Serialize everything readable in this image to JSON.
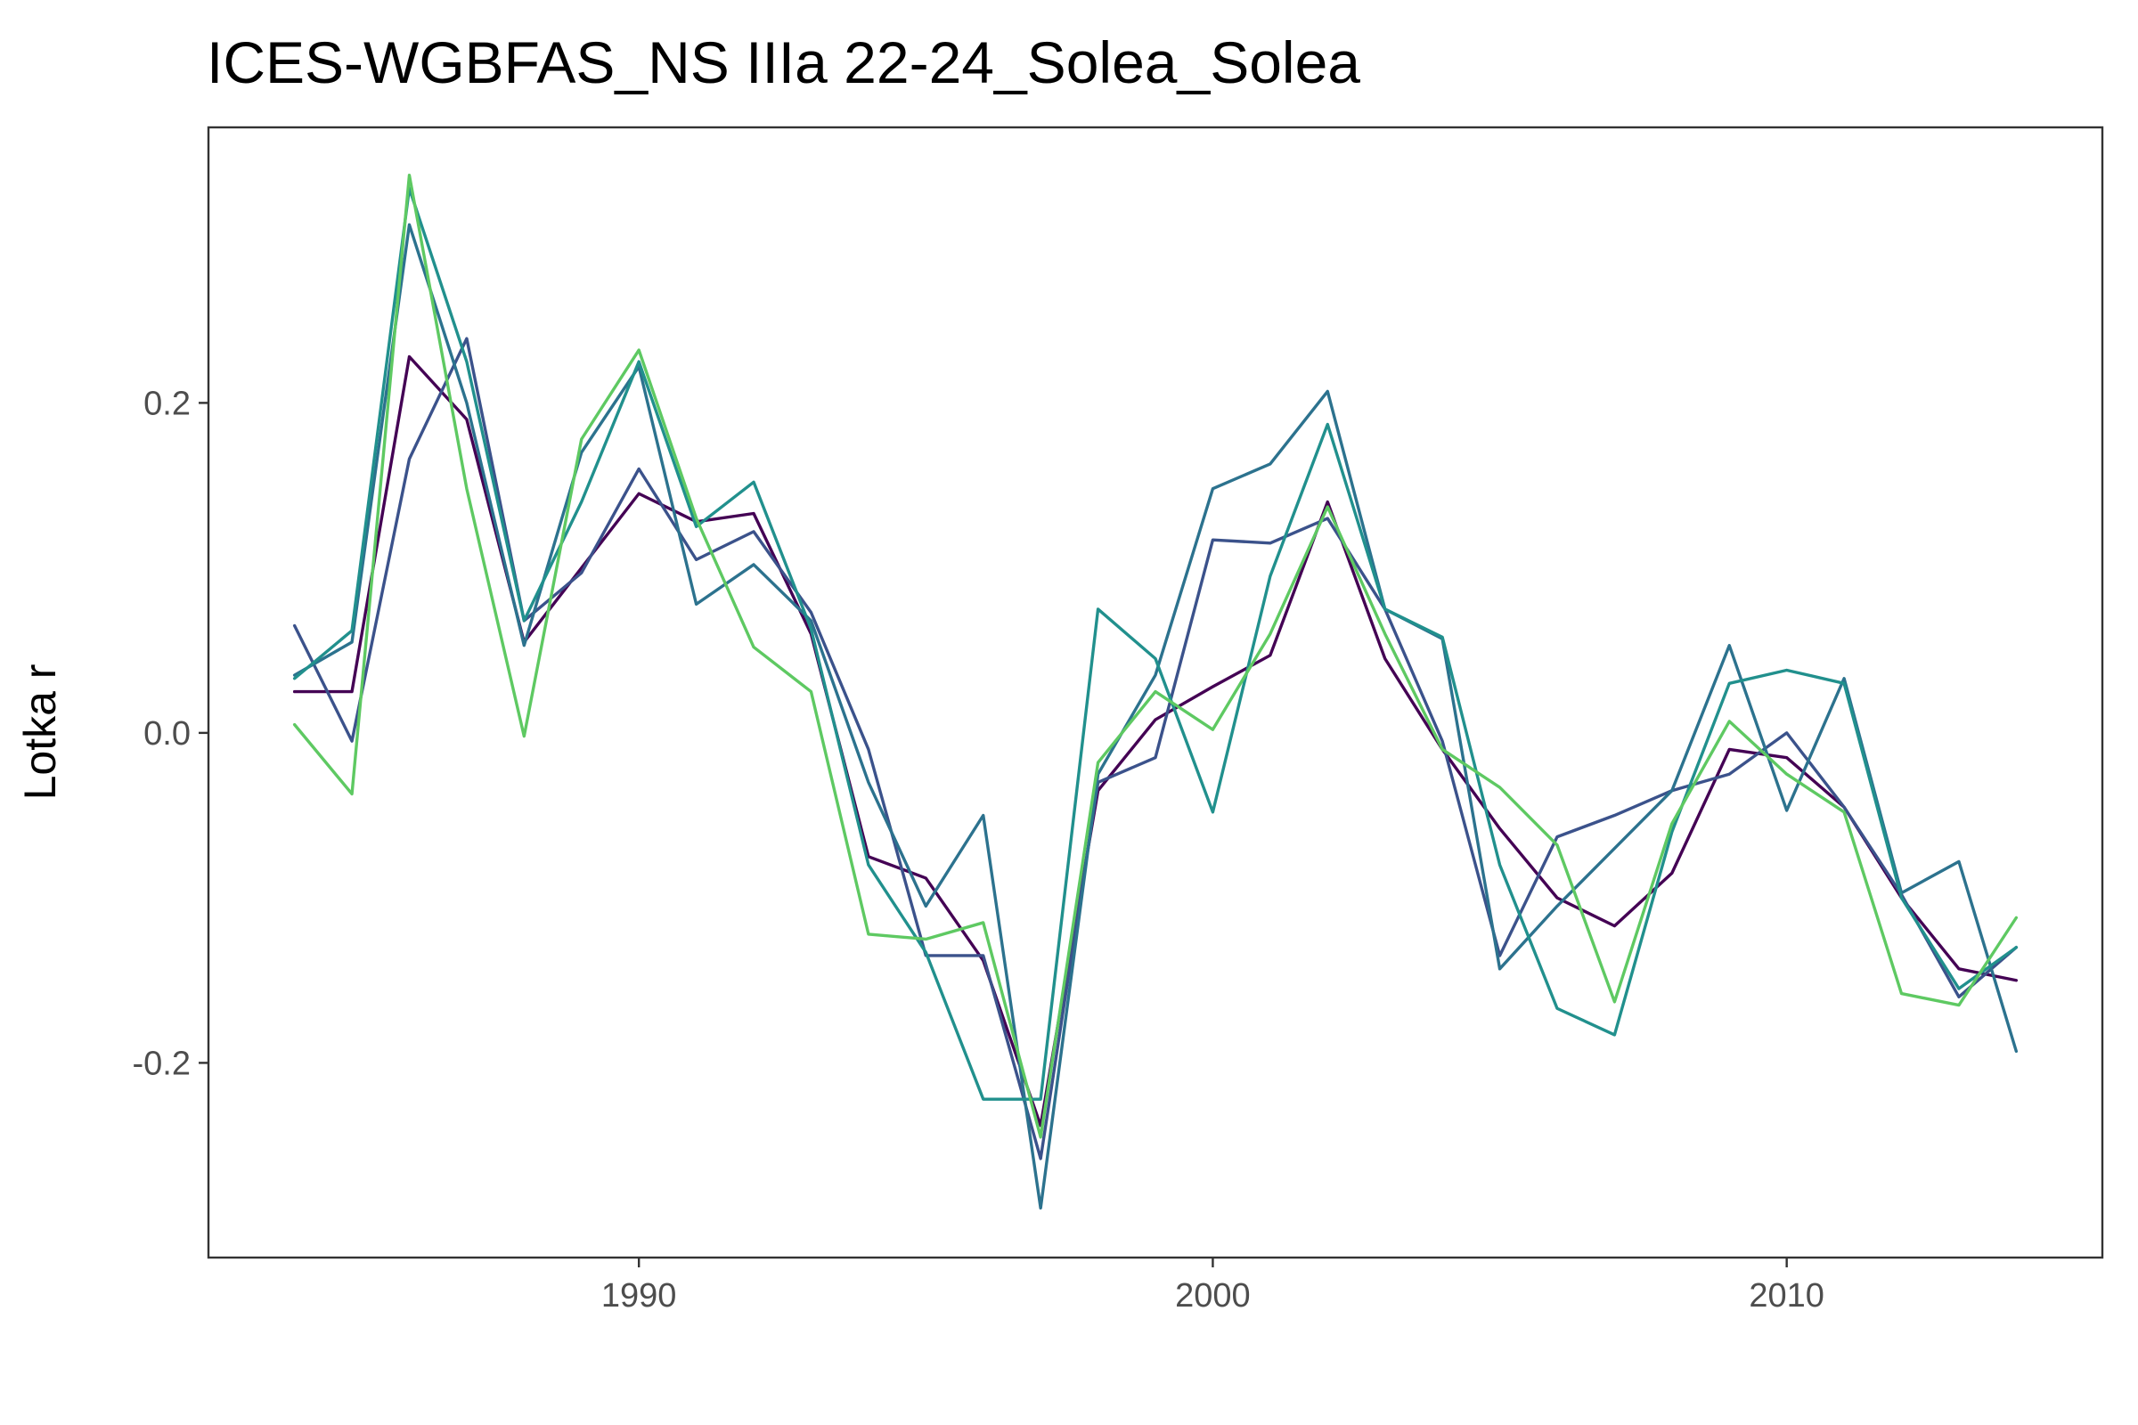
{
  "chart_data": {
    "type": "line",
    "title": "ICES-WGBFAS_NS IIIa 22-24_Solea_Solea",
    "xlabel": "",
    "ylabel": "Lotka r",
    "xlim": [
      1982.5,
      2015.5
    ],
    "ylim": [
      -0.318,
      0.367
    ],
    "xticks": [
      1990,
      2000,
      2010
    ],
    "xtick_labels": [
      "1990",
      "2000",
      "2010"
    ],
    "yticks": [
      -0.2,
      0.0,
      0.2
    ],
    "ytick_labels": [
      "-0.2",
      "0.0",
      "0.2"
    ],
    "grid": false,
    "legend": "none",
    "x": [
      1984,
      1985,
      1986,
      1987,
      1988,
      1989,
      1990,
      1991,
      1992,
      1993,
      1994,
      1995,
      1996,
      1997,
      1998,
      1999,
      2000,
      2001,
      2002,
      2003,
      2004,
      2005,
      2006,
      2007,
      2008,
      2009,
      2010,
      2011,
      2012,
      2013,
      2014
    ],
    "series": [
      {
        "color": "#440154",
        "values": [
          0.025,
          0.025,
          0.228,
          0.19,
          0.055,
          0.1,
          0.145,
          0.128,
          0.133,
          0.06,
          -0.075,
          -0.088,
          -0.138,
          -0.238,
          -0.035,
          0.008,
          0.028,
          0.047,
          0.14,
          0.045,
          -0.01,
          -0.058,
          -0.1,
          -0.117,
          -0.085,
          -0.01,
          -0.015,
          -0.045,
          -0.1,
          -0.143,
          -0.15
        ]
      },
      {
        "color": "#3b528b",
        "values": [
          0.065,
          -0.005,
          0.166,
          0.239,
          0.068,
          0.097,
          0.16,
          0.105,
          0.122,
          0.073,
          -0.01,
          -0.135,
          -0.135,
          -0.258,
          -0.03,
          -0.015,
          0.117,
          0.115,
          0.13,
          0.075,
          -0.005,
          -0.135,
          -0.063,
          -0.05,
          -0.035,
          -0.025,
          0.0,
          -0.045,
          -0.098,
          -0.16,
          -0.13
        ]
      },
      {
        "color": "#2c728e",
        "values": [
          0.035,
          0.055,
          0.308,
          0.2,
          0.053,
          0.17,
          0.222,
          0.078,
          0.102,
          0.068,
          -0.03,
          -0.105,
          -0.05,
          -0.288,
          -0.025,
          0.035,
          0.148,
          0.163,
          0.207,
          0.075,
          0.057,
          -0.143,
          -0.105,
          -0.07,
          -0.035,
          0.053,
          -0.047,
          0.033,
          -0.097,
          -0.078,
          -0.193
        ]
      },
      {
        "color": "#21908d",
        "values": [
          0.033,
          0.062,
          0.33,
          0.225,
          0.068,
          0.14,
          0.225,
          0.125,
          0.152,
          0.063,
          -0.08,
          -0.133,
          -0.222,
          -0.222,
          0.075,
          0.045,
          -0.048,
          0.095,
          0.187,
          0.075,
          0.058,
          -0.08,
          -0.167,
          -0.183,
          -0.06,
          0.03,
          0.038,
          0.03,
          -0.1,
          -0.155,
          -0.13
        ]
      },
      {
        "color": "#5ec962",
        "values": [
          0.005,
          -0.037,
          0.338,
          0.148,
          -0.002,
          0.178,
          0.232,
          0.13,
          0.052,
          0.025,
          -0.122,
          -0.125,
          -0.115,
          -0.245,
          -0.018,
          0.025,
          0.002,
          0.06,
          0.137,
          0.06,
          -0.01,
          -0.033,
          -0.068,
          -0.163,
          -0.055,
          0.007,
          -0.025,
          -0.048,
          -0.158,
          -0.165,
          -0.112
        ]
      }
    ]
  }
}
